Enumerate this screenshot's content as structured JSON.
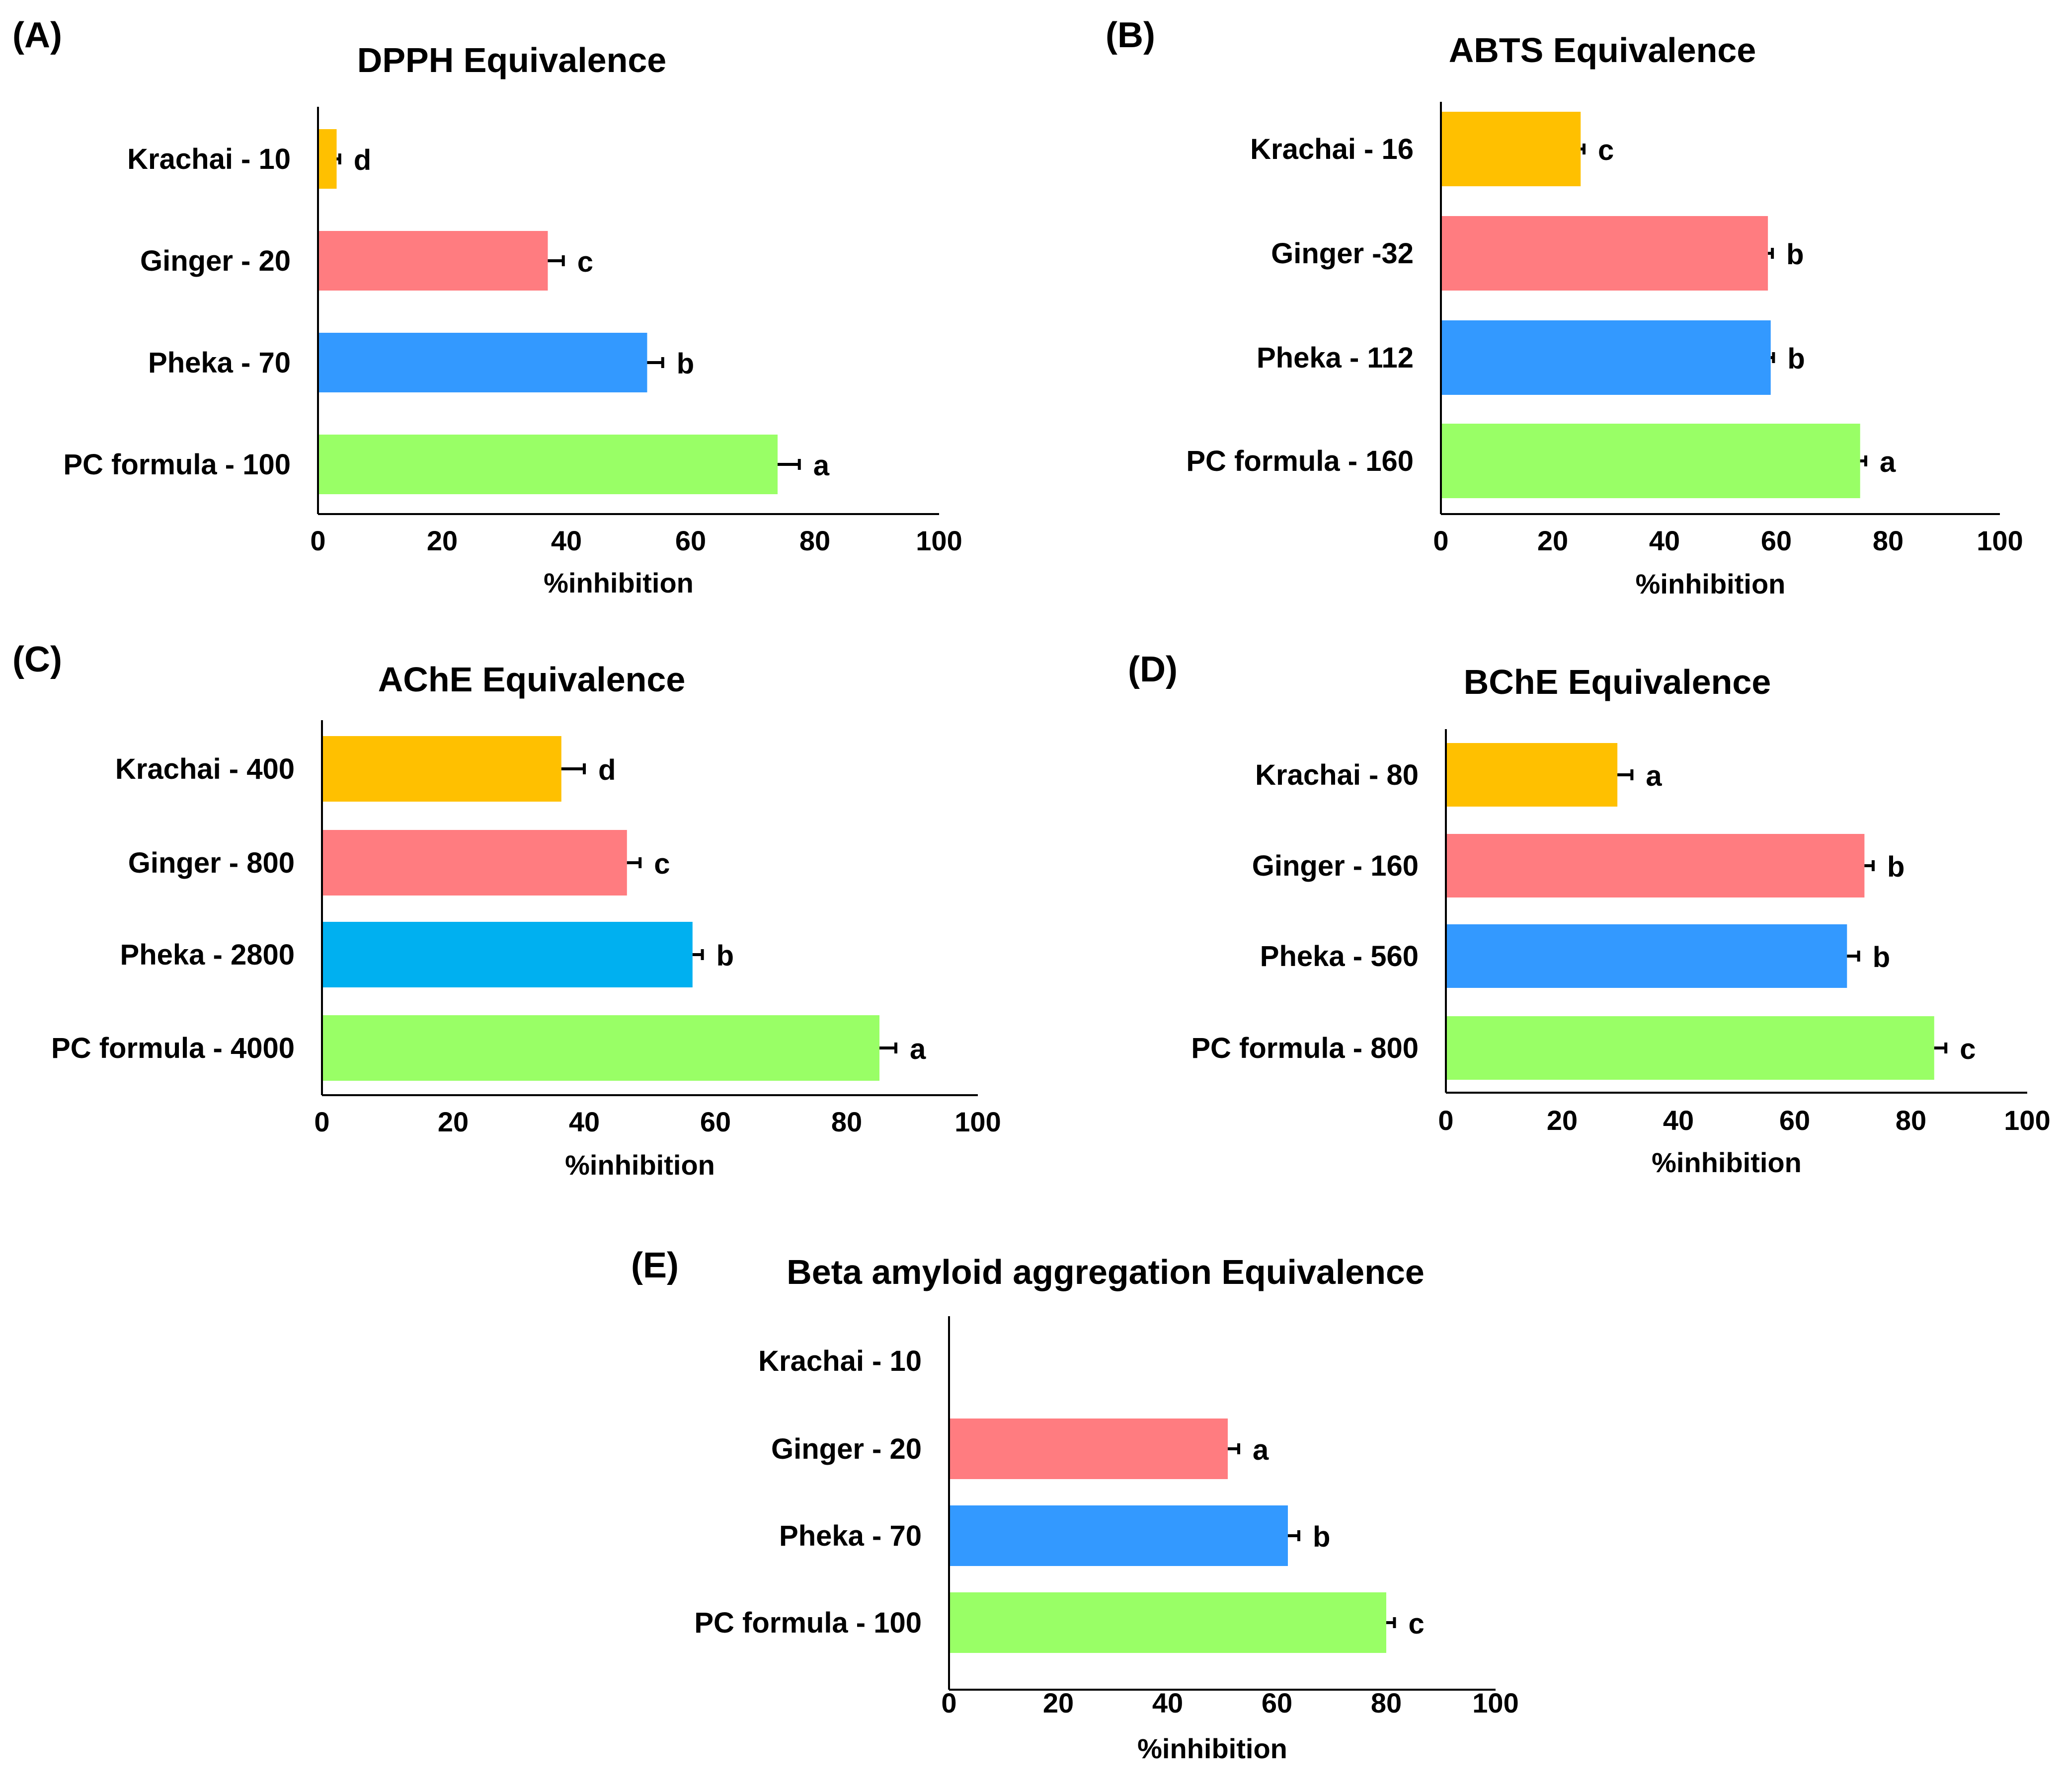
{
  "colors": {
    "Krachai": "#FFC000",
    "Ginger": "#FF7C80",
    "Pheka": "#3399FF",
    "Pheka_C": "#00B0F0",
    "PC formula": "#99FF66"
  },
  "chart_data": [
    {
      "panel": "(A)",
      "type": "bar",
      "orientation": "horizontal",
      "title": "DPPH Equivalence",
      "xlabel": "%inhibition",
      "xlim": [
        0,
        100
      ],
      "xticks": [
        "0",
        "20",
        "40",
        "60",
        "80",
        "100"
      ],
      "categories": [
        "Krachai - 10",
        "Ginger - 20",
        "Pheka - 70",
        "PC formula - 100"
      ],
      "values": [
        3,
        37,
        53,
        74
      ],
      "errors": [
        0.5,
        2.5,
        2.5,
        3.5
      ],
      "significance": [
        "d",
        "c",
        "b",
        "a"
      ],
      "bar_colors": [
        "#FFC000",
        "#FF7C80",
        "#3399FF",
        "#99FF66"
      ]
    },
    {
      "panel": "(B)",
      "type": "bar",
      "orientation": "horizontal",
      "title": "ABTS Equivalence",
      "xlabel": "%inhibition",
      "xlim": [
        0,
        100
      ],
      "xticks": [
        "0",
        "20",
        "40",
        "60",
        "80",
        "100"
      ],
      "categories": [
        "Krachai - 16",
        "Ginger -32",
        "Pheka - 112",
        "PC formula - 160"
      ],
      "values": [
        25,
        58.5,
        59,
        75
      ],
      "errors": [
        0.6,
        0.8,
        0.5,
        1
      ],
      "significance": [
        "c",
        "b",
        "b",
        "a"
      ],
      "bar_colors": [
        "#FFC000",
        "#FF7C80",
        "#3399FF",
        "#99FF66"
      ]
    },
    {
      "panel": "(C)",
      "type": "bar",
      "orientation": "horizontal",
      "title": "AChE  Equivalence",
      "xlabel": "%inhibition",
      "xlim": [
        0,
        100
      ],
      "xticks": [
        "0",
        "20",
        "40",
        "60",
        "80",
        "100"
      ],
      "categories": [
        "Krachai - 400",
        "Ginger - 800",
        "Pheka - 2800",
        "PC formula - 4000"
      ],
      "values": [
        36.5,
        46.5,
        56.5,
        85
      ],
      "errors": [
        3.5,
        2,
        1.5,
        2.5
      ],
      "significance": [
        "d",
        "c",
        "b",
        "a"
      ],
      "bar_colors": [
        "#FFC000",
        "#FF7C80",
        "#00B0F0",
        "#99FF66"
      ]
    },
    {
      "panel": "(D)",
      "type": "bar",
      "orientation": "horizontal",
      "title": "BChE Equivalence",
      "xlabel": "%inhibition",
      "xlim": [
        0,
        100
      ],
      "xticks": [
        "0",
        "20",
        "40",
        "60",
        "80",
        "100"
      ],
      "categories": [
        "Krachai - 80",
        "Ginger - 160",
        "Pheka - 560",
        "PC formula - 800"
      ],
      "values": [
        29.5,
        72,
        69,
        84
      ],
      "errors": [
        2.5,
        1.5,
        2,
        2
      ],
      "significance": [
        "a",
        "b",
        "b",
        "c"
      ],
      "bar_colors": [
        "#FFC000",
        "#FF7C80",
        "#3399FF",
        "#99FF66"
      ]
    },
    {
      "panel": "(E)",
      "type": "bar",
      "orientation": "horizontal",
      "title": "Beta amyloid  aggregation  Equivalence",
      "xlabel": "%inhibition",
      "xlim": [
        0,
        100
      ],
      "xticks": [
        "0",
        "20",
        "40",
        "60",
        "80",
        "100"
      ],
      "categories": [
        "Krachai - 10",
        "Ginger - 20",
        "Pheka - 70",
        "PC formula - 100"
      ],
      "values": [
        0,
        51,
        62,
        80
      ],
      "errors": [
        0,
        2,
        2,
        1.5
      ],
      "significance": [
        "",
        "a",
        "b",
        "c"
      ],
      "bar_colors": [
        "#FFC000",
        "#FF7C80",
        "#3399FF",
        "#99FF66"
      ]
    }
  ]
}
